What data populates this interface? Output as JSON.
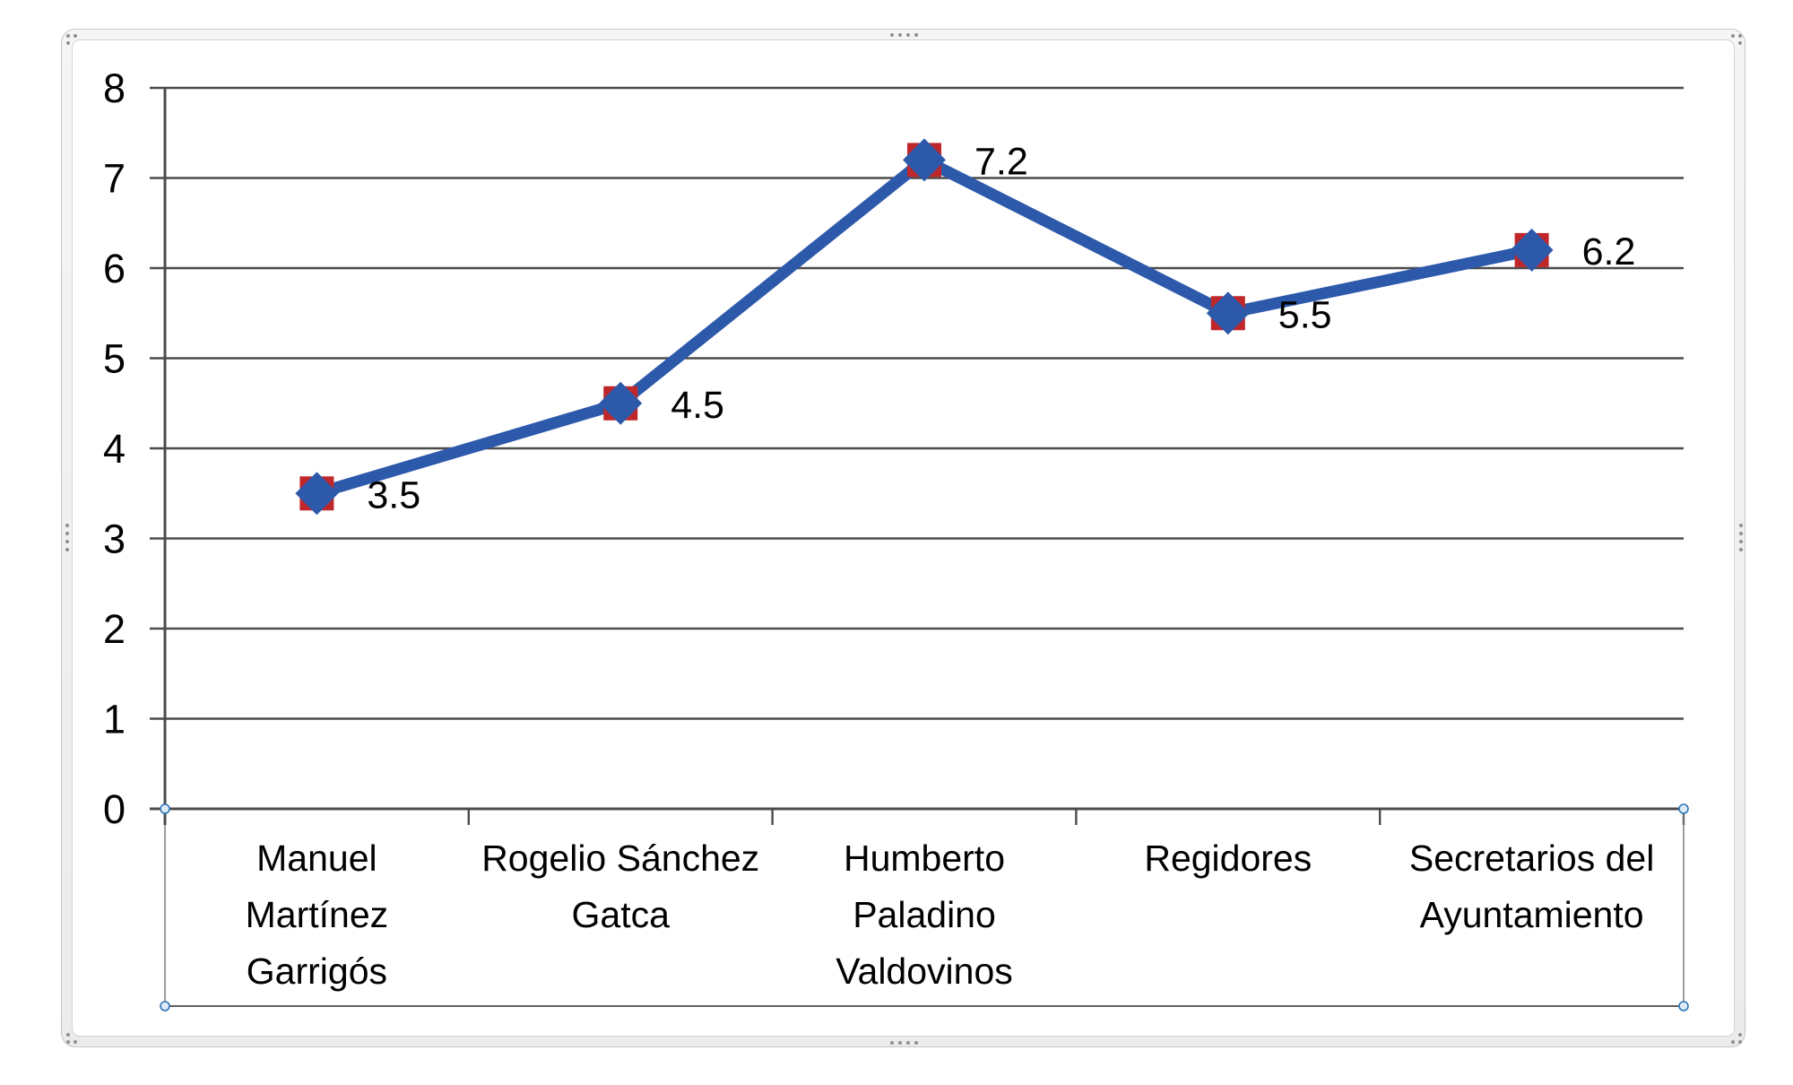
{
  "chart_data": {
    "type": "line",
    "title": "",
    "categories": [
      "Manuel Martínez Garrigós",
      "Rogelio Sánchez Gatca",
      "Humberto Paladino Valdovinos",
      "Regidores",
      "Secretarios del Ayuntamiento"
    ],
    "category_tick_lines": [
      [
        "Manuel",
        "Martínez",
        "Garrigós"
      ],
      [
        "Rogelio Sánchez",
        "Gatca"
      ],
      [
        "Humberto",
        "Paladino",
        "Valdovinos"
      ],
      [
        "Regidores"
      ],
      [
        "Secretarios del",
        "Ayuntamiento"
      ]
    ],
    "values": [
      3.5,
      4.5,
      7.2,
      5.5,
      6.2
    ],
    "data_labels": [
      "3.5",
      "4.5",
      "7.2",
      "5.5",
      "6.2"
    ],
    "y_tick_labels": [
      "0",
      "1",
      "2",
      "3",
      "4",
      "5",
      "6",
      "7",
      "8"
    ],
    "xlabel": "",
    "ylabel": "",
    "ylim": [
      0,
      8
    ],
    "ytick_step": 1,
    "grid": true,
    "legend": false,
    "marker_shape": "red square with blue diamond",
    "colors": {
      "line": "#2d59ab",
      "marker_square": "#c0272b",
      "marker_diamond": "#2d59ab",
      "gridline": "#4b4b4b",
      "label_text": "#000000",
      "selection_handle_stroke": "#2e75b6",
      "selection_handle_fill": "#ddebf7",
      "selection_outline": "#7a7a7a"
    },
    "selection_state": {
      "chart_object_selected": true,
      "category_axis_selected": true
    }
  }
}
